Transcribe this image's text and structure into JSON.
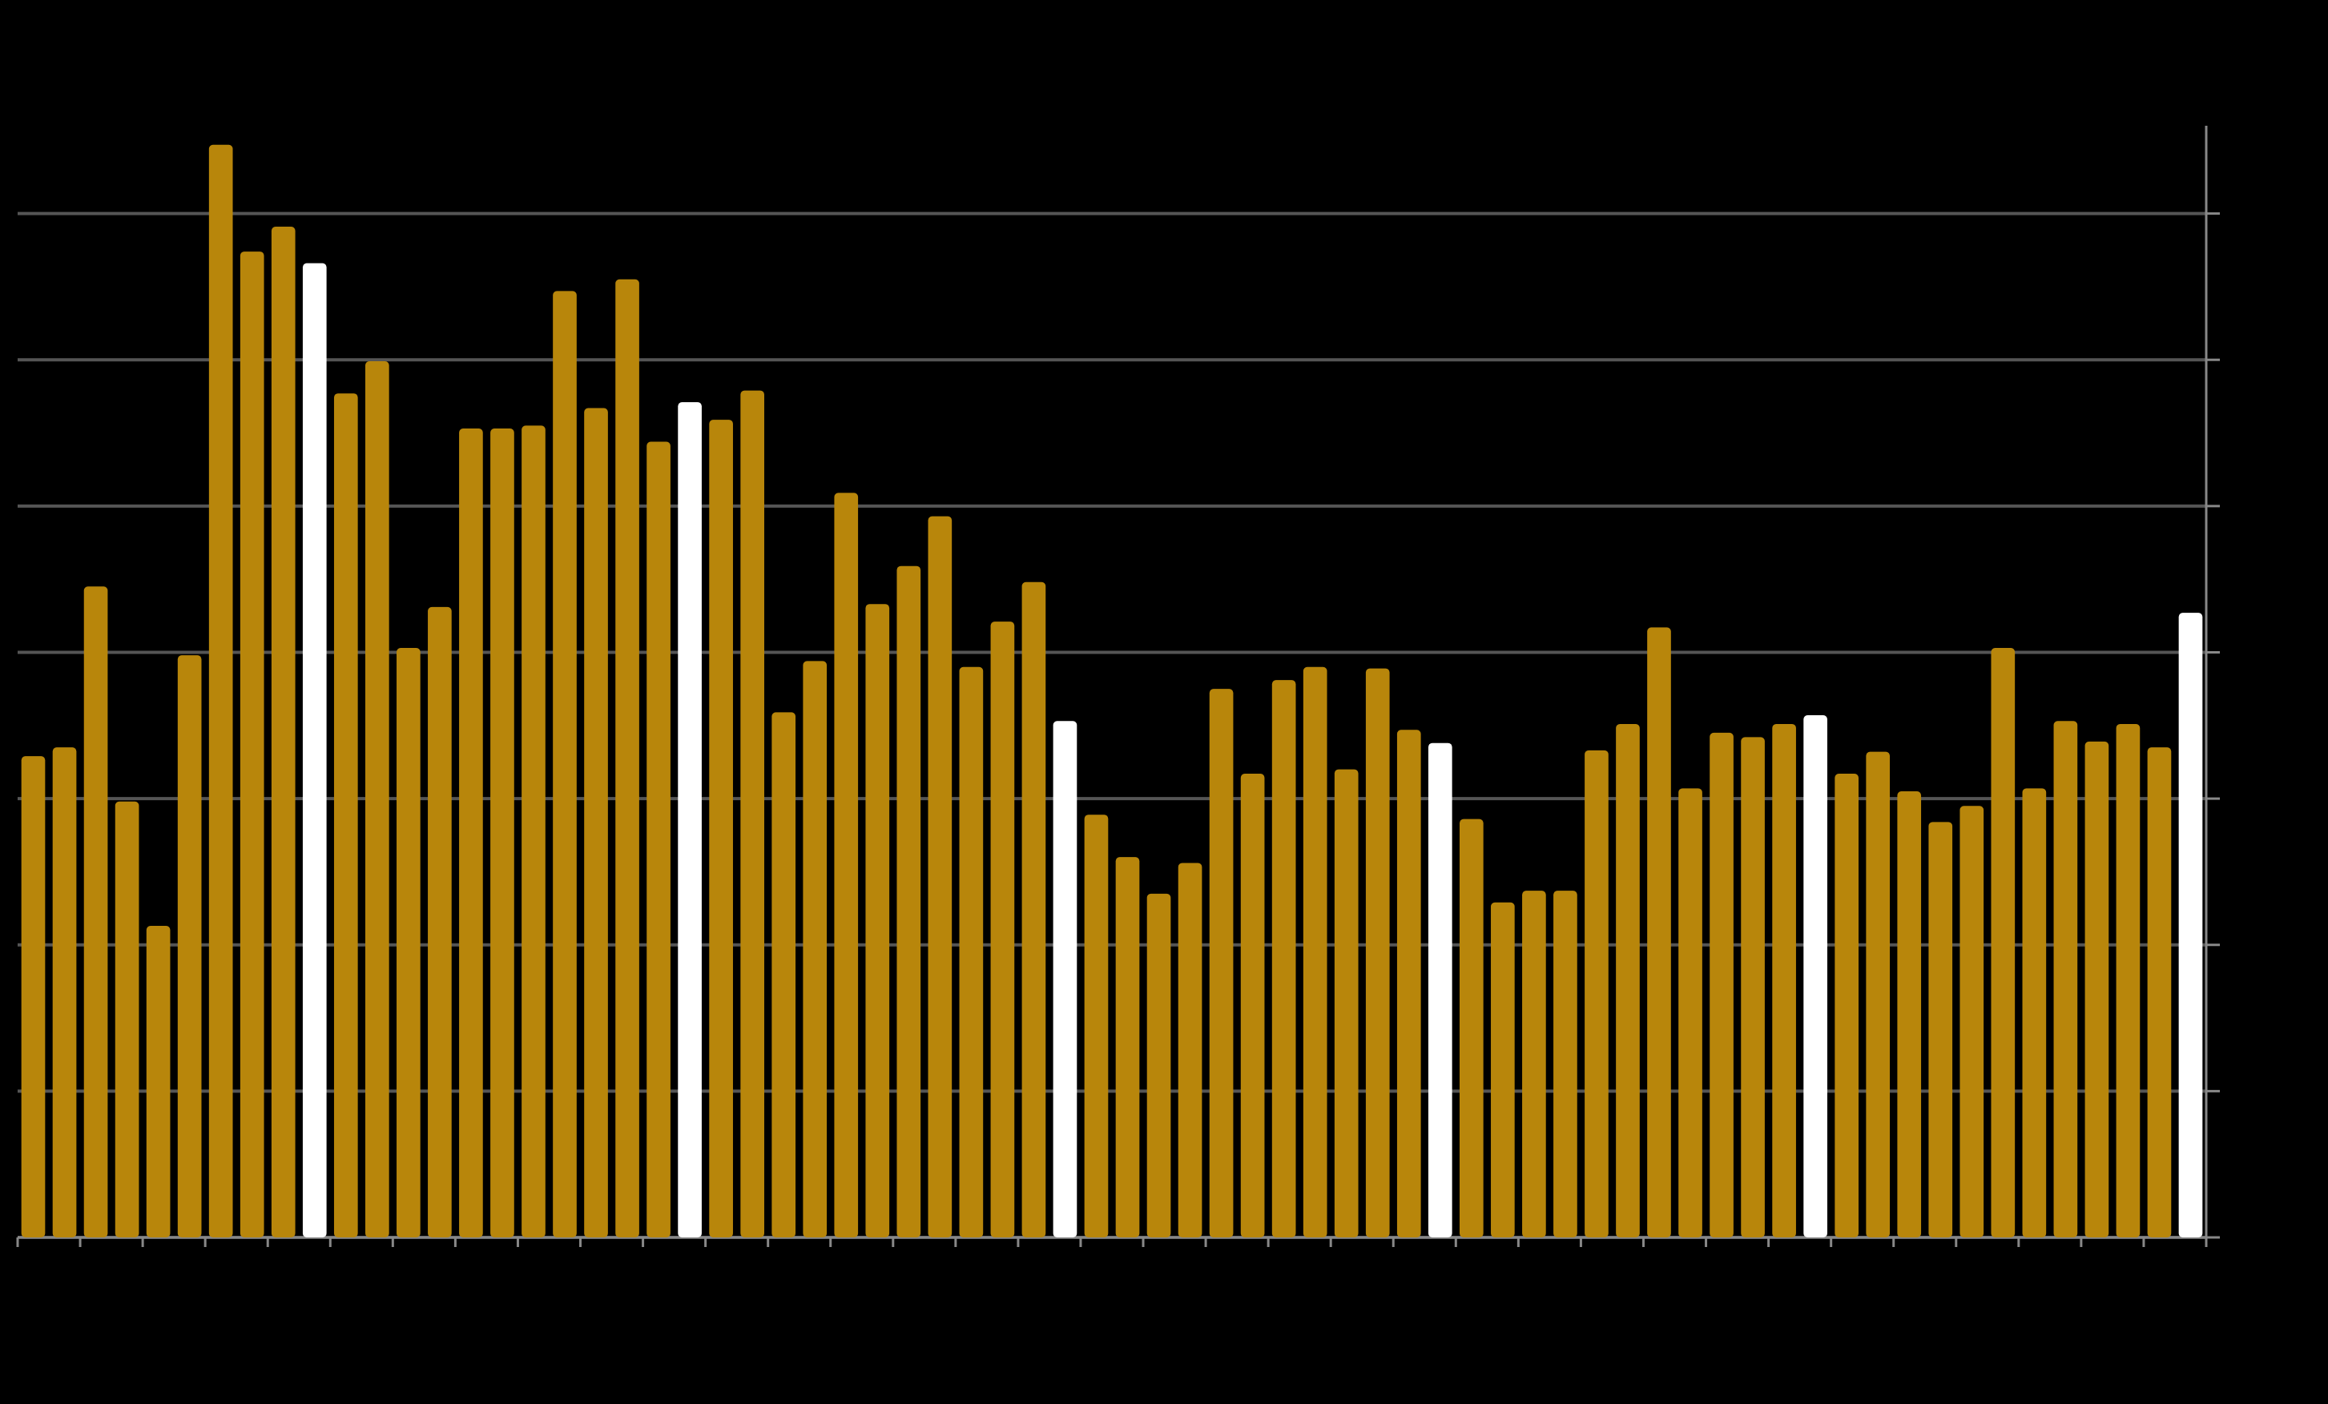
{
  "chart_data": {
    "type": "bar",
    "categories": [
      null,
      null,
      null,
      null,
      null,
      null,
      null,
      null,
      null,
      null,
      null,
      null,
      null,
      null,
      null,
      null,
      null,
      null,
      null,
      null,
      null,
      null,
      null,
      null,
      null,
      null,
      null,
      null,
      null,
      null,
      null,
      null,
      null,
      null,
      null,
      null,
      null,
      null,
      null,
      null,
      null,
      null,
      null,
      null,
      null,
      null,
      null,
      null,
      null,
      null,
      null,
      null,
      null,
      null,
      null,
      null,
      null,
      null,
      null,
      null,
      null,
      null,
      null,
      null,
      null,
      null,
      null,
      null,
      null,
      null
    ],
    "values": [
      3.29,
      3.35,
      4.45,
      2.98,
      2.13,
      3.98,
      7.47,
      6.74,
      6.91,
      6.66,
      5.77,
      5.99,
      4.03,
      4.31,
      5.53,
      5.53,
      5.55,
      6.47,
      5.67,
      6.55,
      5.44,
      5.71,
      5.59,
      5.79,
      3.59,
      3.94,
      5.09,
      4.33,
      4.59,
      4.93,
      3.9,
      4.21,
      4.48,
      3.53,
      2.89,
      2.6,
      2.35,
      2.56,
      3.75,
      3.17,
      3.81,
      3.9,
      3.2,
      3.89,
      3.47,
      3.38,
      2.86,
      2.29,
      2.37,
      2.37,
      3.33,
      3.51,
      4.17,
      3.07,
      3.45,
      3.42,
      3.51,
      3.57,
      3.17,
      3.32,
      3.05,
      2.84,
      2.95,
      4.03,
      3.07,
      3.53,
      3.39,
      3.51,
      3.35,
      4.27
    ],
    "colors": [
      "#b8860b",
      "#b8860b",
      "#b8860b",
      "#b8860b",
      "#b8860b",
      "#b8860b",
      "#b8860b",
      "#b8860b",
      "#b8860b",
      "#ffffff",
      "#b8860b",
      "#b8860b",
      "#b8860b",
      "#b8860b",
      "#b8860b",
      "#b8860b",
      "#b8860b",
      "#b8860b",
      "#b8860b",
      "#b8860b",
      "#b8860b",
      "#ffffff",
      "#b8860b",
      "#b8860b",
      "#b8860b",
      "#b8860b",
      "#b8860b",
      "#b8860b",
      "#b8860b",
      "#b8860b",
      "#b8860b",
      "#b8860b",
      "#b8860b",
      "#ffffff",
      "#b8860b",
      "#b8860b",
      "#b8860b",
      "#b8860b",
      "#b8860b",
      "#b8860b",
      "#b8860b",
      "#b8860b",
      "#b8860b",
      "#b8860b",
      "#b8860b",
      "#ffffff",
      "#b8860b",
      "#b8860b",
      "#b8860b",
      "#b8860b",
      "#b8860b",
      "#b8860b",
      "#b8860b",
      "#b8860b",
      "#b8860b",
      "#b8860b",
      "#b8860b",
      "#ffffff",
      "#b8860b",
      "#b8860b",
      "#b8860b",
      "#b8860b",
      "#b8860b",
      "#b8860b",
      "#b8860b",
      "#b8860b",
      "#b8860b",
      "#b8860b",
      "#b8860b",
      "#ffffff"
    ],
    "ylim": [
      0,
      7.6
    ],
    "yticks": [
      0,
      1,
      2,
      3,
      4,
      5,
      6,
      7
    ],
    "grid": true
  }
}
